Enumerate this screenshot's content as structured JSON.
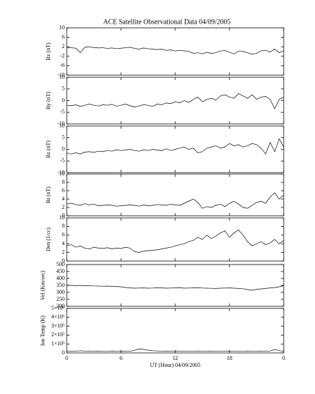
{
  "title": "ACE Satellite Observational Data   04/09/2005",
  "chart_data": [
    {
      "type": "line",
      "ylabel": "Bx (nT)",
      "color": "#000000",
      "ylim": [
        -10,
        10
      ],
      "yticks": [
        -10,
        -6,
        -2,
        2,
        6,
        10
      ],
      "xlim": [
        0,
        24
      ],
      "xticks": [
        0,
        6,
        12,
        18,
        24
      ],
      "x": [
        0,
        0.5,
        1,
        1.5,
        2,
        2.5,
        3,
        3.5,
        4,
        4.5,
        5,
        5.5,
        6,
        6.5,
        7,
        7.5,
        8,
        8.5,
        9,
        9.5,
        10,
        10.5,
        11,
        11.5,
        12,
        12.5,
        13,
        13.5,
        14,
        14.5,
        15,
        15.5,
        16,
        16.5,
        17,
        17.5,
        18,
        18.5,
        19,
        19.5,
        20,
        20.5,
        21,
        21.5,
        22,
        22.5,
        23,
        23.5,
        24
      ],
      "values": [
        1.5,
        1.6,
        1.4,
        -0.5,
        1.8,
        2,
        1.7,
        1.5,
        1.6,
        1.3,
        1.5,
        1.2,
        1.4,
        1.6,
        1.8,
        1.3,
        1.0,
        1.5,
        1.2,
        1.0,
        0.8,
        1.0,
        0.5,
        0.7,
        0.2,
        0.5,
        0.3,
        0.1,
        -0.8,
        -0.5,
        -1.0,
        -0.3,
        -0.8,
        -0.5,
        0.2,
        0.5,
        -0.3,
        -1.0,
        0.2,
        0.0,
        -0.5,
        -1.2,
        -0.8,
        0.3,
        0.5,
        -0.2,
        1.0,
        -0.5,
        0.3
      ]
    },
    {
      "type": "line",
      "ylabel": "By (nT)",
      "color": "#000000",
      "ylim": [
        -10,
        10
      ],
      "yticks": [
        -10,
        -5,
        0,
        5,
        10
      ],
      "xlim": [
        0,
        24
      ],
      "xticks": [
        0,
        6,
        12,
        18,
        24
      ],
      "x": [
        0,
        0.5,
        1,
        1.5,
        2,
        2.5,
        3,
        3.5,
        4,
        4.5,
        5,
        5.5,
        6,
        6.5,
        7,
        7.5,
        8,
        8.5,
        9,
        9.5,
        10,
        10.5,
        11,
        11.5,
        12,
        12.5,
        13,
        13.5,
        14,
        14.5,
        15,
        15.5,
        16,
        16.5,
        17,
        17.5,
        18,
        18.5,
        19,
        19.5,
        20,
        20.5,
        21,
        21.5,
        22,
        22.5,
        23,
        23.5,
        24
      ],
      "values": [
        -2,
        -2.2,
        -1.8,
        -2.5,
        -2,
        -1.5,
        -2,
        -2.3,
        -1.8,
        -2,
        -1.6,
        -2.4,
        -2,
        -1.5,
        -2.2,
        -2.8,
        -2.3,
        -1.8,
        -2,
        -2.5,
        -1.5,
        -1.8,
        -1,
        -1.3,
        -0.5,
        -1,
        0,
        -0.8,
        0.5,
        1.5,
        -0.5,
        0.5,
        1,
        0.2,
        2,
        2.5,
        1.5,
        1,
        3,
        2,
        1,
        2.5,
        0.5,
        1.5,
        1.8,
        0.5,
        -3.5,
        0.5,
        1.5
      ]
    },
    {
      "type": "line",
      "ylabel": "Bz (nT)",
      "color": "#000000",
      "ylim": [
        -10,
        10
      ],
      "yticks": [
        -10,
        -5,
        0,
        5,
        10
      ],
      "xlim": [
        0,
        24
      ],
      "xticks": [
        0,
        6,
        12,
        18,
        24
      ],
      "x": [
        0,
        0.5,
        1,
        1.5,
        2,
        2.5,
        3,
        3.5,
        4,
        4.5,
        5,
        5.5,
        6,
        6.5,
        7,
        7.5,
        8,
        8.5,
        9,
        9.5,
        10,
        10.5,
        11,
        11.5,
        12,
        12.5,
        13,
        13.5,
        14,
        14.5,
        15,
        15.5,
        16,
        16.5,
        17,
        17.5,
        18,
        18.5,
        19,
        19.5,
        20,
        20.5,
        21,
        21.5,
        22,
        22.5,
        23,
        23.5,
        24
      ],
      "values": [
        -1.5,
        -2,
        -1.5,
        -2,
        -1.2,
        -1,
        -1.3,
        -0.8,
        -1,
        -0.5,
        -0.8,
        -0.2,
        -0.5,
        -0.3,
        0,
        -0.5,
        -0.8,
        -0.2,
        -0.5,
        0,
        -0.3,
        -0.6,
        0.2,
        -0.5,
        0,
        0.5,
        1,
        0,
        0.5,
        -1.5,
        -1,
        0.5,
        1,
        1.5,
        0.5,
        1,
        2.5,
        1.5,
        2,
        1,
        1.5,
        2.5,
        2,
        0.5,
        -2,
        3,
        -1,
        4.5,
        1
      ]
    },
    {
      "type": "line",
      "ylabel": "Bt (nT)",
      "color": "#000000",
      "ylim": [
        0,
        10
      ],
      "yticks": [
        0,
        2,
        4,
        6,
        8,
        10
      ],
      "xlim": [
        0,
        24
      ],
      "xticks": [
        0,
        6,
        12,
        18,
        24
      ],
      "x": [
        0,
        0.5,
        1,
        1.5,
        2,
        2.5,
        3,
        3.5,
        4,
        4.5,
        5,
        5.5,
        6,
        6.5,
        7,
        7.5,
        8,
        8.5,
        9,
        9.5,
        10,
        10.5,
        11,
        11.5,
        12,
        12.5,
        13,
        13.5,
        14,
        14.5,
        15,
        15.5,
        16,
        16.5,
        17,
        17.5,
        18,
        18.5,
        19,
        19.5,
        20,
        20.5,
        21,
        21.5,
        22,
        22.5,
        23,
        23.5,
        24
      ],
      "values": [
        2.8,
        3,
        2.7,
        2.5,
        2.9,
        2.6,
        2.8,
        2.4,
        2.5,
        2.6,
        2.5,
        2.3,
        2.4,
        2.5,
        2.6,
        2.5,
        2.3,
        2.6,
        2.4,
        2.5,
        2.7,
        2.6,
        2.5,
        2.8,
        2.6,
        2.5,
        3,
        3.5,
        4,
        3.2,
        1.8,
        2.2,
        2,
        2.5,
        2.8,
        2.2,
        3,
        3.5,
        2.8,
        2,
        1.8,
        2.5,
        3.2,
        3.5,
        3,
        4.5,
        5.5,
        4,
        5
      ]
    },
    {
      "type": "line",
      "ylabel": "Den (1/cc)",
      "color": "#000000",
      "ylim": [
        0,
        10
      ],
      "yticks": [
        0,
        2,
        4,
        6,
        8,
        10
      ],
      "xlim": [
        0,
        24
      ],
      "xticks": [
        0,
        6,
        12,
        18,
        24
      ],
      "x": [
        0,
        0.5,
        1,
        1.5,
        2,
        2.5,
        3,
        3.5,
        4,
        4.5,
        5,
        5.5,
        6,
        6.5,
        7,
        7.5,
        8,
        8.5,
        9,
        9.5,
        10,
        10.5,
        11,
        11.5,
        12,
        12.5,
        13,
        13.5,
        14,
        14.5,
        15,
        15.5,
        16,
        16.5,
        17,
        17.5,
        18,
        18.5,
        19,
        19.5,
        20,
        20.5,
        21,
        21.5,
        22,
        22.5,
        23,
        23.5,
        24
      ],
      "values": [
        3.5,
        3.8,
        3.2,
        3.5,
        3,
        2.8,
        3.2,
        3,
        2.9,
        3.1,
        2.8,
        3,
        2.9,
        3.2,
        3,
        2.2,
        2,
        2.3,
        2.4,
        2.5,
        2.6,
        2.8,
        3,
        3.2,
        3.5,
        3.8,
        4,
        4.5,
        4.8,
        5.5,
        5,
        6,
        5.2,
        5.8,
        6.5,
        7,
        5.5,
        6.5,
        7.2,
        6,
        4.5,
        3.5,
        4,
        4.5,
        3.8,
        4.2,
        5,
        4,
        4.8
      ]
    },
    {
      "type": "line",
      "ylabel": "Vel (Km/sec)",
      "color": "#000000",
      "ylim": [
        200,
        500
      ],
      "yticks": [
        200,
        250,
        300,
        350,
        400,
        450,
        500
      ],
      "xlim": [
        0,
        24
      ],
      "xticks": [
        0,
        6,
        12,
        18,
        24
      ],
      "x": [
        0,
        0.5,
        1,
        1.5,
        2,
        2.5,
        3,
        3.5,
        4,
        4.5,
        5,
        5.5,
        6,
        6.5,
        7,
        7.5,
        8,
        8.5,
        9,
        9.5,
        10,
        10.5,
        11,
        11.5,
        12,
        12.5,
        13,
        13.5,
        14,
        14.5,
        15,
        15.5,
        16,
        16.5,
        17,
        17.5,
        18,
        18.5,
        19,
        19.5,
        20,
        20.5,
        21,
        21.5,
        22,
        22.5,
        23,
        23.5,
        24
      ],
      "values": [
        352,
        350,
        348,
        350,
        347,
        349,
        346,
        345,
        344,
        345,
        343,
        342,
        340,
        335,
        332,
        330,
        331,
        332,
        330,
        331,
        333,
        332,
        330,
        331,
        332,
        333,
        330,
        331,
        332,
        333,
        331,
        330,
        329,
        328,
        330,
        331,
        332,
        330,
        328,
        326,
        320,
        315,
        322,
        325,
        328,
        332,
        335,
        340,
        348
      ]
    },
    {
      "type": "line",
      "ylabel": "Ion Temp (K)",
      "xlabel": "UT (Hour)  04/09/2005",
      "color": "#000000",
      "ylim": [
        0,
        500000
      ],
      "yticks": [
        0,
        {
          "value": 100000,
          "label": "1×10⁵"
        },
        {
          "value": 200000,
          "label": "2×10⁵"
        },
        {
          "value": 300000,
          "label": "3×10⁵"
        },
        {
          "value": 400000,
          "label": "4×10⁵"
        },
        {
          "value": 500000,
          "label": "5×10⁵"
        }
      ],
      "xlim": [
        0,
        24
      ],
      "xticks": [
        0,
        6,
        12,
        18,
        {
          "value": 24,
          "label": "0"
        }
      ],
      "x": [
        0,
        0.5,
        1,
        1.5,
        2,
        2.5,
        3,
        3.5,
        4,
        4.5,
        5,
        5.5,
        6,
        6.5,
        7,
        7.5,
        8,
        8.5,
        9,
        9.5,
        10,
        10.5,
        11,
        11.5,
        12,
        12.5,
        13,
        13.5,
        14,
        14.5,
        15,
        15.5,
        16,
        16.5,
        17,
        17.5,
        18,
        18.5,
        19,
        19.5,
        20,
        20.5,
        21,
        21.5,
        22,
        22.5,
        23,
        23.5,
        24
      ],
      "values": [
        20000,
        22000,
        18000,
        25000,
        20000,
        21000,
        19000,
        20000,
        18000,
        17000,
        19000,
        18000,
        20000,
        19000,
        18000,
        30000,
        45000,
        40000,
        30000,
        25000,
        22000,
        20000,
        21000,
        20000,
        22000,
        21000,
        20000,
        19000,
        18000,
        20000,
        17000,
        19000,
        20000,
        18000,
        19000,
        20000,
        21000,
        19000,
        18000,
        17000,
        20000,
        18000,
        19000,
        20000,
        18000,
        22000,
        40000,
        25000,
        20000
      ]
    }
  ]
}
